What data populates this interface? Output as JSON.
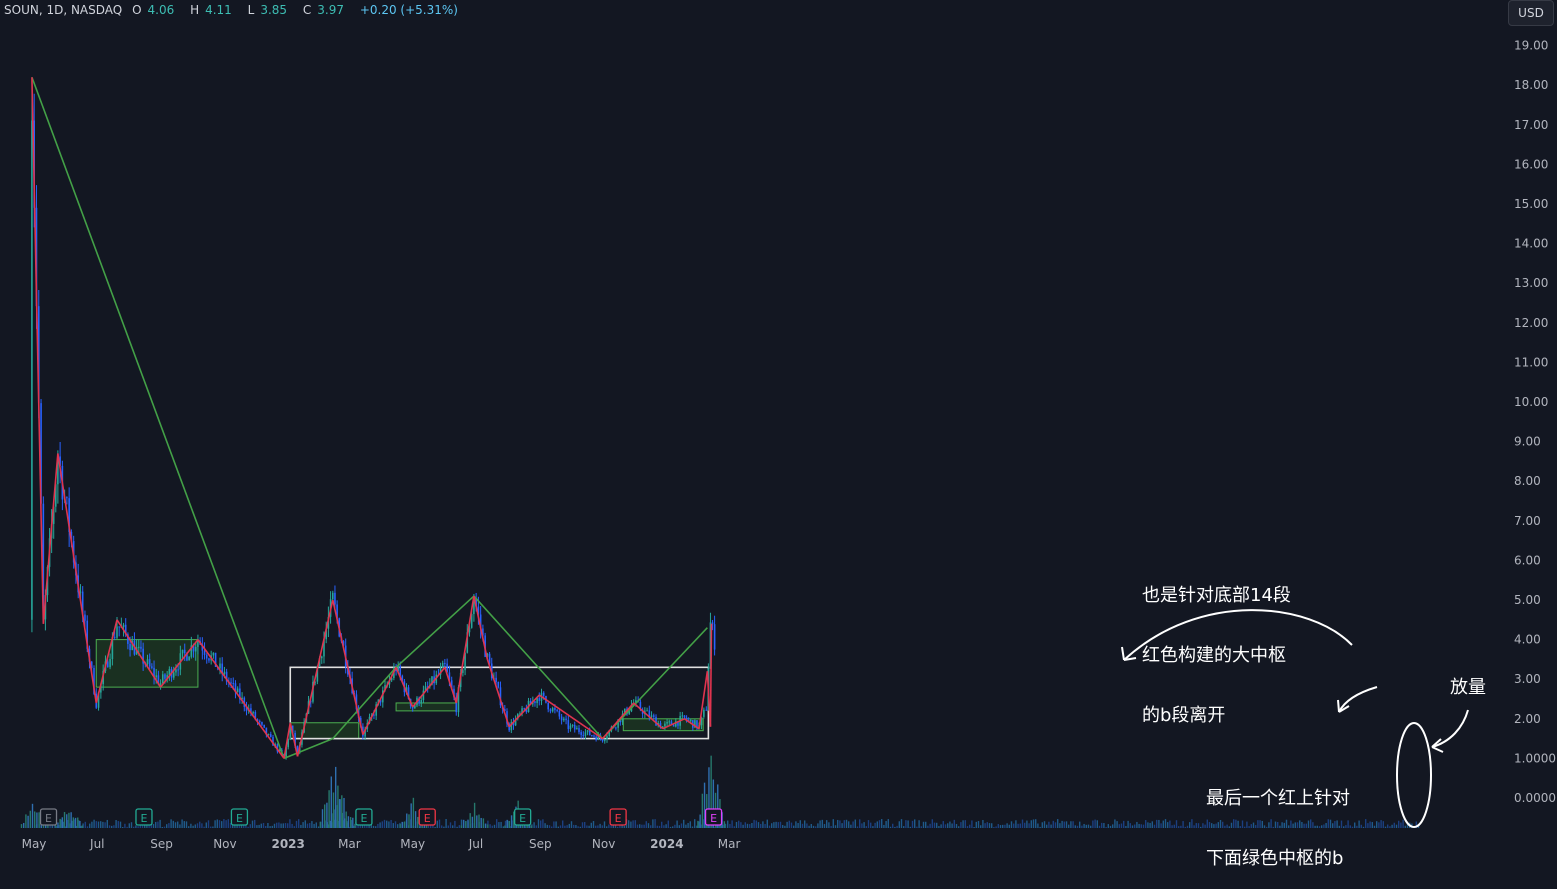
{
  "header": {
    "symbol": "SOUN, 1D, NASDAQ",
    "open_label": "O",
    "open": "4.06",
    "high_label": "H",
    "high": "4.11",
    "low_label": "L",
    "low": "3.85",
    "close_label": "C",
    "close": "3.97",
    "change": "+0.20 (+5.31%)"
  },
  "currency_button": "USD",
  "annotations": {
    "top_lines": [
      "也是针对底部14段",
      "红色构建的大中枢",
      "的b段离开"
    ],
    "bottom_lines": [
      "最后一个红上针对",
      "下面绿色中枢的b"
    ],
    "volume": "放量"
  },
  "chart_data": {
    "type": "candlestick",
    "symbol": "SOUN",
    "interval": "1D",
    "exchange": "NASDAQ",
    "ylim": [
      0,
      19.5
    ],
    "y_ticks": [
      "19.00",
      "18.00",
      "17.00",
      "16.00",
      "15.00",
      "14.00",
      "13.00",
      "12.00",
      "11.00",
      "10.00",
      "9.00",
      "8.00",
      "7.00",
      "6.00",
      "5.00",
      "4.00",
      "3.00",
      "2.00",
      "1.0000",
      "0.0000"
    ],
    "x_ticks": [
      "May",
      "Jul",
      "Sep",
      "Nov",
      "2023",
      "Mar",
      "May",
      "Jul",
      "Sep",
      "Nov",
      "2024",
      "Mar"
    ],
    "earnings_markers": [
      {
        "label": "E",
        "date": "2022-05",
        "color": "#787b86"
      },
      {
        "label": "E",
        "date": "2022-08",
        "color": "#22ab94"
      },
      {
        "label": "E",
        "date": "2022-11",
        "color": "#22ab94"
      },
      {
        "label": "E",
        "date": "2023-03",
        "color": "#22ab94"
      },
      {
        "label": "E",
        "date": "2023-05",
        "color": "#f23645"
      },
      {
        "label": "E",
        "date": "2023-08",
        "color": "#22ab94"
      },
      {
        "label": "E",
        "date": "2023-11",
        "color": "#f23645"
      },
      {
        "label": "E",
        "date": "2024-02",
        "color": "#e040fb"
      }
    ],
    "price_path": [
      [
        "2022-04-28",
        4.5
      ],
      [
        "2022-04-29",
        18.2
      ],
      [
        "2022-05-10",
        4.4
      ],
      [
        "2022-05-24",
        8.7
      ],
      [
        "2022-06-30",
        2.4
      ],
      [
        "2022-07-20",
        4.4
      ],
      [
        "2022-08-31",
        2.9
      ],
      [
        "2022-10-06",
        4.0
      ],
      [
        "2022-12-28",
        1.0
      ],
      [
        "2023-01-03",
        1.8
      ],
      [
        "2023-01-10",
        1.1
      ],
      [
        "2023-02-13",
        5.0
      ],
      [
        "2023-03-14",
        1.6
      ],
      [
        "2023-04-15",
        3.3
      ],
      [
        "2023-05-01",
        2.3
      ],
      [
        "2023-06-01",
        3.3
      ],
      [
        "2023-06-12",
        2.3
      ],
      [
        "2023-06-29",
        5.1
      ],
      [
        "2023-07-12",
        3.5
      ],
      [
        "2023-08-02",
        1.8
      ],
      [
        "2023-08-31",
        2.6
      ],
      [
        "2023-09-28",
        1.8
      ],
      [
        "2023-10-31",
        1.5
      ],
      [
        "2023-11-30",
        2.4
      ],
      [
        "2023-12-28",
        1.8
      ],
      [
        "2024-01-18",
        2.0
      ],
      [
        "2024-02-01",
        1.8
      ],
      [
        "2024-02-08",
        2.3
      ],
      [
        "2024-02-12",
        4.4
      ],
      [
        "2024-02-16",
        3.97
      ]
    ],
    "red_segments": [
      [
        "2022-04-29",
        18.2,
        "2022-05-10",
        4.4
      ],
      [
        "2022-05-10",
        4.4,
        "2022-05-24",
        8.7
      ],
      [
        "2022-05-24",
        8.7,
        "2022-06-30",
        2.4
      ],
      [
        "2022-06-30",
        2.4,
        "2022-07-20",
        4.5
      ],
      [
        "2022-07-20",
        4.5,
        "2022-08-31",
        2.8
      ],
      [
        "2022-08-31",
        2.8,
        "2022-10-06",
        4.0
      ],
      [
        "2022-10-06",
        4.0,
        "2022-12-28",
        1.0
      ],
      [
        "2022-12-28",
        1.0,
        "2023-01-03",
        1.9
      ],
      [
        "2023-01-03",
        1.9,
        "2023-01-10",
        1.05
      ],
      [
        "2023-01-10",
        1.05,
        "2023-02-13",
        5.0
      ],
      [
        "2023-02-13",
        5.0,
        "2023-03-14",
        1.6
      ],
      [
        "2023-03-14",
        1.6,
        "2023-04-15",
        3.3
      ],
      [
        "2023-04-15",
        3.3,
        "2023-05-01",
        2.3
      ],
      [
        "2023-05-01",
        2.3,
        "2023-06-01",
        3.3
      ],
      [
        "2023-06-01",
        3.3,
        "2023-06-12",
        2.4
      ],
      [
        "2023-06-12",
        2.4,
        "2023-06-29",
        5.1
      ],
      [
        "2023-06-29",
        5.1,
        "2023-07-12",
        3.5
      ],
      [
        "2023-07-12",
        3.5,
        "2023-08-02",
        1.8
      ],
      [
        "2023-08-02",
        1.8,
        "2023-08-31",
        2.6
      ],
      [
        "2023-08-31",
        2.6,
        "2023-10-31",
        1.5
      ],
      [
        "2023-10-31",
        1.5,
        "2023-11-30",
        2.4
      ],
      [
        "2023-11-30",
        2.4,
        "2023-12-28",
        1.75
      ],
      [
        "2023-12-28",
        1.75,
        "2024-01-18",
        2.0
      ],
      [
        "2024-01-18",
        2.0,
        "2024-02-01",
        1.75
      ],
      [
        "2024-02-01",
        1.75,
        "2024-02-09",
        3.2
      ],
      [
        "2024-02-09",
        3.2,
        "2024-02-12",
        1.8
      ],
      [
        "2024-02-12",
        1.8,
        "2024-02-13",
        4.4
      ]
    ],
    "green_segments": [
      [
        "2022-04-29",
        18.2,
        "2022-12-28",
        1.0
      ],
      [
        "2022-12-28",
        1.0,
        "2023-02-13",
        1.5
      ],
      [
        "2023-02-13",
        1.5,
        "2023-04-15",
        3.3
      ],
      [
        "2023-04-15",
        3.3,
        "2023-06-29",
        5.1
      ],
      [
        "2023-06-29",
        5.1,
        "2023-10-31",
        1.5
      ],
      [
        "2023-10-31",
        1.5,
        "2024-02-09",
        4.3
      ]
    ],
    "zones_green": [
      [
        "2022-06-30",
        4.0,
        "2022-10-06",
        2.8
      ],
      [
        "2023-01-03",
        1.9,
        "2023-03-10",
        1.5
      ],
      [
        "2023-04-15",
        2.4,
        "2023-06-12",
        2.2
      ],
      [
        "2023-11-20",
        2.0,
        "2024-02-05",
        1.7
      ]
    ],
    "zones_white": [
      [
        "2023-01-03",
        3.3,
        "2024-02-10",
        1.5
      ]
    ],
    "volume_spikes": [
      [
        "2022-05-01",
        0.45
      ],
      [
        "2022-06-03",
        0.35
      ],
      [
        "2023-02-13",
        1.0
      ],
      [
        "2023-02-21",
        0.6
      ],
      [
        "2023-05-01",
        0.45
      ],
      [
        "2023-06-29",
        0.4
      ],
      [
        "2023-08-10",
        0.4
      ],
      [
        "2024-02-12",
        1.2
      ]
    ]
  },
  "colors": {
    "background": "#131722",
    "up_candle": "#26a69a",
    "down_candle": "#2962ff",
    "red_segment": "#e0344f",
    "green_segment": "#43a047",
    "zone_fill": "#1e3a22",
    "zone_border": "#4caf50",
    "white_box": "#e0e0e0",
    "axis_text": "#b2b5be"
  }
}
